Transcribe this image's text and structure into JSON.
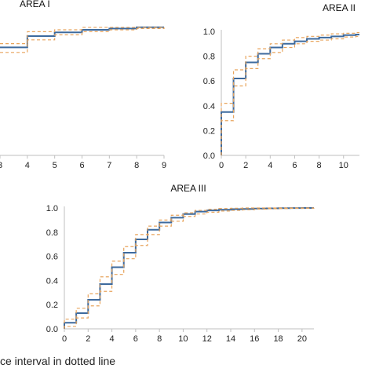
{
  "caption": "ce interval in dotted line",
  "colors": {
    "cdf": "#3d6a9e",
    "ci": "#e8a45c",
    "axis": "#bfbfbf"
  },
  "chart_data": [
    {
      "type": "line",
      "title": "AREA I",
      "step": true,
      "xlim": [
        3,
        9
      ],
      "ylim": [
        0,
        1.05
      ],
      "x_ticks": [
        3,
        4,
        5,
        6,
        7,
        8,
        9
      ],
      "x_tick_labels": [
        "3",
        "4",
        "5",
        "6",
        "7",
        "8",
        "9"
      ],
      "y_ticks": [],
      "grid": false,
      "series": [
        {
          "role": "estimate",
          "x": [
            3,
            4,
            5,
            6,
            7,
            8,
            9
          ],
          "y": [
            0.86,
            0.95,
            0.98,
            1.0,
            1.01,
            1.02,
            1.02
          ]
        },
        {
          "role": "upper",
          "x": [
            3,
            4,
            5,
            6,
            7,
            8,
            9
          ],
          "y": [
            0.89,
            0.985,
            1.0,
            1.02,
            1.02,
            1.02,
            1.02
          ]
        },
        {
          "role": "lower",
          "x": [
            3,
            4,
            5,
            6,
            7,
            8,
            9
          ],
          "y": [
            0.82,
            0.92,
            0.96,
            0.985,
            1.0,
            1.01,
            1.02
          ]
        }
      ]
    },
    {
      "type": "line",
      "title": "AREA II",
      "step": true,
      "xlim": [
        0,
        11.3
      ],
      "ylim": [
        0,
        1.0
      ],
      "x_ticks": [
        0,
        2,
        4,
        6,
        8,
        10
      ],
      "x_tick_labels": [
        "0",
        "2",
        "4",
        "6",
        "8",
        "10"
      ],
      "y_ticks": [
        0,
        0.2,
        0.4,
        0.6,
        0.8,
        1.0
      ],
      "y_tick_labels": [
        "0.0",
        "0.2",
        "0.4",
        "0.6",
        "0.8",
        "1.0"
      ],
      "grid": false,
      "series": [
        {
          "role": "estimate",
          "x": [
            0,
            1,
            2,
            3,
            4,
            5,
            6,
            7,
            8,
            9,
            10,
            11
          ],
          "y": [
            0.35,
            0.62,
            0.75,
            0.82,
            0.87,
            0.9,
            0.92,
            0.94,
            0.95,
            0.96,
            0.97,
            0.975
          ]
        },
        {
          "role": "upper",
          "x": [
            0,
            1,
            2,
            3,
            4,
            5,
            6,
            7,
            8,
            9,
            10,
            11
          ],
          "y": [
            0.42,
            0.69,
            0.8,
            0.86,
            0.9,
            0.93,
            0.95,
            0.96,
            0.97,
            0.98,
            0.985,
            0.99
          ]
        },
        {
          "role": "lower",
          "x": [
            0,
            1,
            2,
            3,
            4,
            5,
            6,
            7,
            8,
            9,
            10,
            11
          ],
          "y": [
            0.28,
            0.56,
            0.7,
            0.78,
            0.83,
            0.87,
            0.9,
            0.92,
            0.93,
            0.94,
            0.955,
            0.96
          ]
        }
      ]
    },
    {
      "type": "line",
      "title": "AREA III",
      "step": true,
      "xlim": [
        0,
        21
      ],
      "ylim": [
        0,
        1.0
      ],
      "x_ticks": [
        0,
        2,
        4,
        6,
        8,
        10,
        12,
        14,
        16,
        18,
        20
      ],
      "x_tick_labels": [
        "0",
        "2",
        "4",
        "6",
        "8",
        "10",
        "12",
        "14",
        "16",
        "18",
        "20"
      ],
      "y_ticks": [
        0,
        0.2,
        0.4,
        0.6,
        0.8,
        1.0
      ],
      "y_tick_labels": [
        "0.0",
        "0.2",
        "0.4",
        "0.6",
        "0.8",
        "1.0"
      ],
      "grid": false,
      "series": [
        {
          "role": "estimate",
          "x": [
            0,
            1,
            2,
            3,
            4,
            5,
            6,
            7,
            8,
            9,
            10,
            11,
            12,
            13,
            14,
            15,
            16,
            17,
            18,
            19,
            20,
            21
          ],
          "y": [
            0.05,
            0.13,
            0.24,
            0.37,
            0.51,
            0.63,
            0.74,
            0.82,
            0.88,
            0.92,
            0.95,
            0.97,
            0.98,
            0.985,
            0.99,
            0.992,
            0.995,
            0.997,
            0.998,
            0.999,
            1.0,
            1.0
          ]
        },
        {
          "role": "upper",
          "x": [
            0,
            1,
            2,
            3,
            4,
            5,
            6,
            7,
            8,
            9,
            10,
            11,
            12,
            13,
            14,
            15,
            16,
            17,
            18,
            19,
            20,
            21
          ],
          "y": [
            0.08,
            0.17,
            0.29,
            0.43,
            0.56,
            0.68,
            0.78,
            0.85,
            0.9,
            0.94,
            0.96,
            0.98,
            0.99,
            0.995,
            0.998,
            1.0,
            1.0,
            1.0,
            1.0,
            1.0,
            1.0,
            1.0
          ]
        },
        {
          "role": "lower",
          "x": [
            0,
            1,
            2,
            3,
            4,
            5,
            6,
            7,
            8,
            9,
            10,
            11,
            12,
            13,
            14,
            15,
            16,
            17,
            18,
            19,
            20,
            21
          ],
          "y": [
            0.02,
            0.09,
            0.19,
            0.31,
            0.45,
            0.58,
            0.69,
            0.78,
            0.85,
            0.89,
            0.93,
            0.95,
            0.965,
            0.975,
            0.98,
            0.985,
            0.99,
            0.993,
            0.995,
            0.997,
            0.998,
            0.999
          ]
        }
      ]
    }
  ]
}
